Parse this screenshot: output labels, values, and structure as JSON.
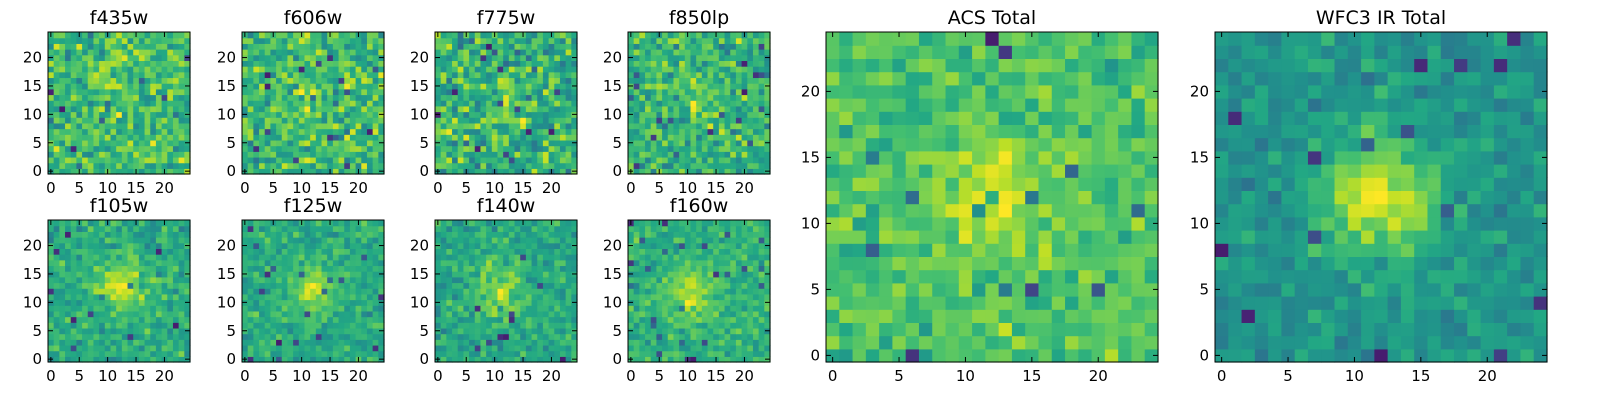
{
  "chart_data": [
    {
      "type": "heatmap",
      "title": "f435w",
      "colormap": "viridis",
      "xlim": [
        -0.5,
        24.5
      ],
      "ylim": [
        -0.5,
        24.5
      ],
      "xticks": [
        "0",
        "5",
        "10",
        "15",
        "20"
      ],
      "yticks": [
        "0",
        "5",
        "10",
        "15",
        "20"
      ],
      "grid": false,
      "peak": [
        12,
        17
      ],
      "peak_strength": 0.12,
      "noise_amplitude": 0.5,
      "seed": 11
    },
    {
      "type": "heatmap",
      "title": "f606w",
      "colormap": "viridis",
      "xlim": [
        -0.5,
        24.5
      ],
      "ylim": [
        -0.5,
        24.5
      ],
      "xticks": [
        "0",
        "5",
        "10",
        "15",
        "20"
      ],
      "yticks": [
        "0",
        "5",
        "10",
        "15",
        "20"
      ],
      "grid": false,
      "peak": [
        12,
        12
      ],
      "peak_strength": 0.12,
      "noise_amplitude": 0.5,
      "seed": 23
    },
    {
      "type": "heatmap",
      "title": "f775w",
      "colormap": "viridis",
      "xlim": [
        -0.5,
        24.5
      ],
      "ylim": [
        -0.5,
        24.5
      ],
      "xticks": [
        "0",
        "5",
        "10",
        "15",
        "20"
      ],
      "yticks": [
        "0",
        "5",
        "10",
        "15",
        "20"
      ],
      "grid": false,
      "peak": [
        13,
        12
      ],
      "peak_strength": 0.12,
      "noise_amplitude": 0.5,
      "seed": 37
    },
    {
      "type": "heatmap",
      "title": "f850lp",
      "colormap": "viridis",
      "xlim": [
        -0.5,
        24.5
      ],
      "ylim": [
        -0.5,
        24.5
      ],
      "xticks": [
        "0",
        "5",
        "10",
        "15",
        "20"
      ],
      "yticks": [
        "0",
        "5",
        "10",
        "15",
        "20"
      ],
      "grid": false,
      "peak": [
        12,
        12
      ],
      "peak_strength": 0.12,
      "noise_amplitude": 0.5,
      "seed": 41
    },
    {
      "type": "heatmap",
      "title": "f105w",
      "colormap": "viridis",
      "xlim": [
        -0.5,
        24.5
      ],
      "ylim": [
        -0.5,
        24.5
      ],
      "xticks": [
        "0",
        "5",
        "10",
        "15",
        "20"
      ],
      "yticks": [
        "0",
        "5",
        "10",
        "15",
        "20"
      ],
      "grid": false,
      "peak": [
        12,
        13
      ],
      "peak_strength": 0.35,
      "noise_amplitude": 0.35,
      "seed": 53
    },
    {
      "type": "heatmap",
      "title": "f125w",
      "colormap": "viridis",
      "xlim": [
        -0.5,
        24.5
      ],
      "ylim": [
        -0.5,
        24.5
      ],
      "xticks": [
        "0",
        "5",
        "10",
        "15",
        "20"
      ],
      "yticks": [
        "0",
        "5",
        "10",
        "15",
        "20"
      ],
      "grid": false,
      "peak": [
        12,
        12
      ],
      "peak_strength": 0.35,
      "noise_amplitude": 0.35,
      "seed": 67
    },
    {
      "type": "heatmap",
      "title": "f140w",
      "colormap": "viridis",
      "xlim": [
        -0.5,
        24.5
      ],
      "ylim": [
        -0.5,
        24.5
      ],
      "xticks": [
        "0",
        "5",
        "10",
        "15",
        "20"
      ],
      "yticks": [
        "0",
        "5",
        "10",
        "15",
        "20"
      ],
      "grid": false,
      "peak": [
        11,
        12
      ],
      "peak_strength": 0.35,
      "noise_amplitude": 0.35,
      "seed": 71
    },
    {
      "type": "heatmap",
      "title": "f160w",
      "colormap": "viridis",
      "xlim": [
        -0.5,
        24.5
      ],
      "ylim": [
        -0.5,
        24.5
      ],
      "xticks": [
        "0",
        "5",
        "10",
        "15",
        "20"
      ],
      "yticks": [
        "0",
        "5",
        "10",
        "15",
        "20"
      ],
      "grid": false,
      "peak": [
        11,
        12
      ],
      "peak_strength": 0.35,
      "noise_amplitude": 0.35,
      "seed": 83
    },
    {
      "type": "heatmap",
      "title": "ACS Total",
      "colormap": "viridis",
      "xlim": [
        -0.5,
        24.5
      ],
      "ylim": [
        -0.5,
        24.5
      ],
      "xticks": [
        "0",
        "5",
        "10",
        "15",
        "20"
      ],
      "yticks": [
        "0",
        "5",
        "10",
        "15",
        "20"
      ],
      "grid": false,
      "peak": [
        12,
        12
      ],
      "peak_strength": 0.25,
      "noise_amplitude": 0.35,
      "seed": 97
    },
    {
      "type": "heatmap",
      "title": "WFC3 IR Total",
      "colormap": "viridis",
      "xlim": [
        -0.5,
        24.5
      ],
      "ylim": [
        -0.5,
        24.5
      ],
      "xticks": [
        "0",
        "5",
        "10",
        "15",
        "20"
      ],
      "yticks": [
        "0",
        "5",
        "10",
        "15",
        "20"
      ],
      "grid": false,
      "peak": [
        12,
        12
      ],
      "peak_strength": 0.55,
      "noise_amplitude": 0.3,
      "seed": 101
    }
  ]
}
